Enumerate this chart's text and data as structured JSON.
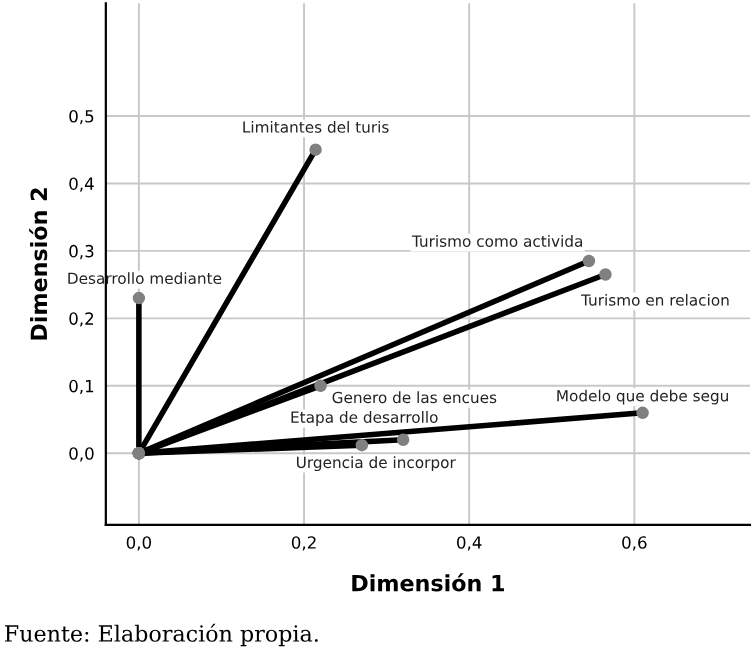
{
  "chart_data": {
    "type": "line",
    "xlabel": "Dimensión 1",
    "ylabel": "Dimensión 2",
    "annotations": [
      "Fuente: Elaboración propia."
    ],
    "xlim": [
      -0.04,
      0.74
    ],
    "ylim": [
      -0.106,
      0.667
    ],
    "xticks": [
      {
        "value": 0,
        "label": "0,0"
      },
      {
        "value": 0.2,
        "label": "0,2"
      },
      {
        "value": 0.4,
        "label": "0,4"
      },
      {
        "value": 0.6,
        "label": "0,6"
      }
    ],
    "yticks": [
      {
        "value": 0,
        "label": "0,0"
      },
      {
        "value": 0.1,
        "label": "0,1"
      },
      {
        "value": 0.2,
        "label": "0,2"
      },
      {
        "value": 0.3,
        "label": "0,3"
      },
      {
        "value": 0.4,
        "label": "0,4"
      },
      {
        "value": 0.5,
        "label": "0,5"
      }
    ],
    "grid": true,
    "marker": "circle",
    "line_style": "solid",
    "legend": false,
    "series": [
      {
        "name": "Limitantes del turis",
        "color": "#000000",
        "x": [
          0,
          0.214
        ],
        "values": [
          0,
          0.45
        ]
      },
      {
        "name": "Desarrollo mediante",
        "color": "#000000",
        "x": [
          0,
          0.0
        ],
        "values": [
          0,
          0.23
        ]
      },
      {
        "name": "Turismo como activida",
        "color": "#000000",
        "x": [
          0,
          0.545
        ],
        "values": [
          0,
          0.285
        ]
      },
      {
        "name": "Turismo en relacion",
        "color": "#000000",
        "x": [
          0,
          0.565
        ],
        "values": [
          0,
          0.265
        ]
      },
      {
        "name": "Genero de las encues",
        "color": "#000000",
        "x": [
          0,
          0.22
        ],
        "values": [
          0,
          0.1
        ]
      },
      {
        "name": "Modelo que debe segu",
        "color": "#000000",
        "x": [
          0,
          0.61
        ],
        "values": [
          0,
          0.06
        ]
      },
      {
        "name": "Etapa de desarrollo",
        "color": "#000000",
        "x": [
          0,
          0.32
        ],
        "values": [
          0,
          0.02
        ]
      },
      {
        "name": "Urgencia de incorpor",
        "color": "#000000",
        "x": [
          0,
          0.27
        ],
        "values": [
          0,
          0.012
        ]
      }
    ]
  }
}
